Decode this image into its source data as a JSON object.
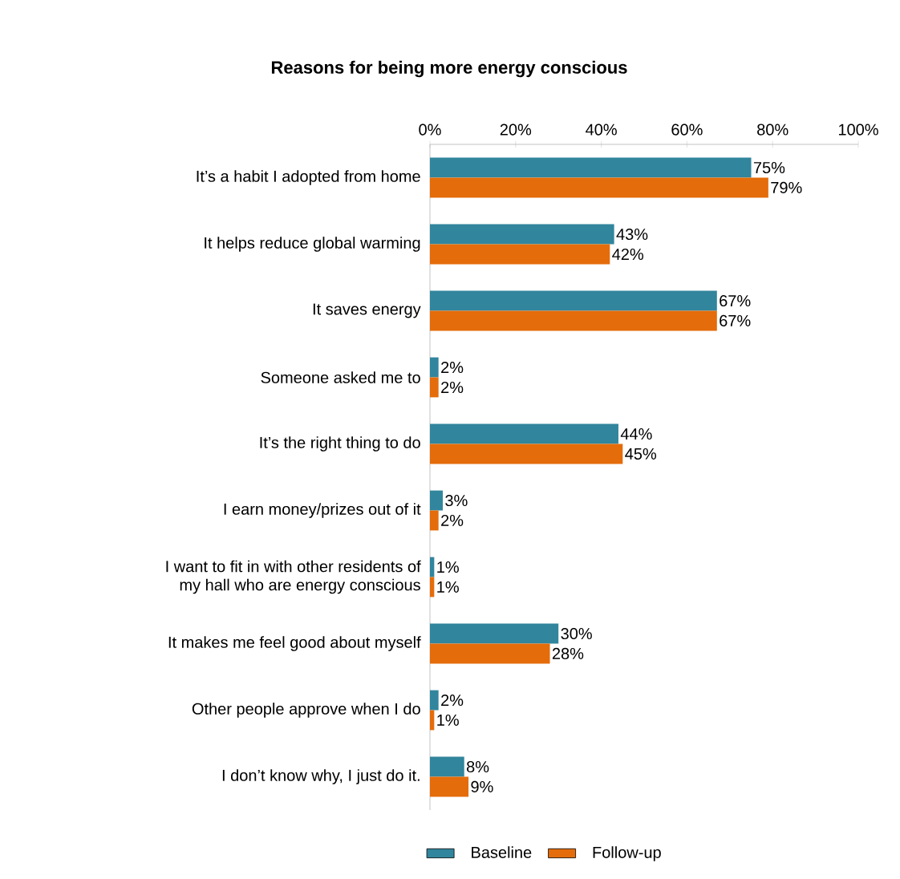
{
  "chart_data": {
    "type": "bar",
    "orientation": "horizontal",
    "title": "Reasons for being more energy conscious",
    "categories": [
      "It’s a habit I adopted from home",
      "It helps reduce global warming",
      "It saves energy",
      "Someone asked me to",
      "It’s the right thing to do",
      "I earn money/prizes out of it",
      "I want to fit in with other residents of my hall who are energy conscious",
      "It makes me feel good about myself",
      "Other people approve when I do",
      "I don’t know why, I just do it."
    ],
    "series": [
      {
        "name": "Baseline",
        "color": "#31859c",
        "values": [
          75,
          43,
          67,
          2,
          44,
          3,
          1,
          30,
          2,
          8
        ],
        "value_labels": [
          "75%",
          "43%",
          "67%",
          "2%",
          "44%",
          "3%",
          "1%",
          "30%",
          "2%",
          "8%"
        ]
      },
      {
        "name": "Follow-up",
        "color": "#e46c0a",
        "values": [
          79,
          42,
          67,
          2,
          45,
          2,
          1,
          28,
          1,
          9
        ],
        "value_labels": [
          "79%",
          "42%",
          "67%",
          "2%",
          "45%",
          "2%",
          "1%",
          "28%",
          "1%",
          "9%"
        ]
      }
    ],
    "xlim": [
      0,
      100
    ],
    "xticks": [
      {
        "value": 0,
        "label": "0%"
      },
      {
        "value": 20,
        "label": "20%"
      },
      {
        "value": 40,
        "label": "40%"
      },
      {
        "value": 60,
        "label": "60%"
      },
      {
        "value": 80,
        "label": "80%"
      },
      {
        "value": 100,
        "label": "100%"
      }
    ],
    "legend": "bottom"
  }
}
